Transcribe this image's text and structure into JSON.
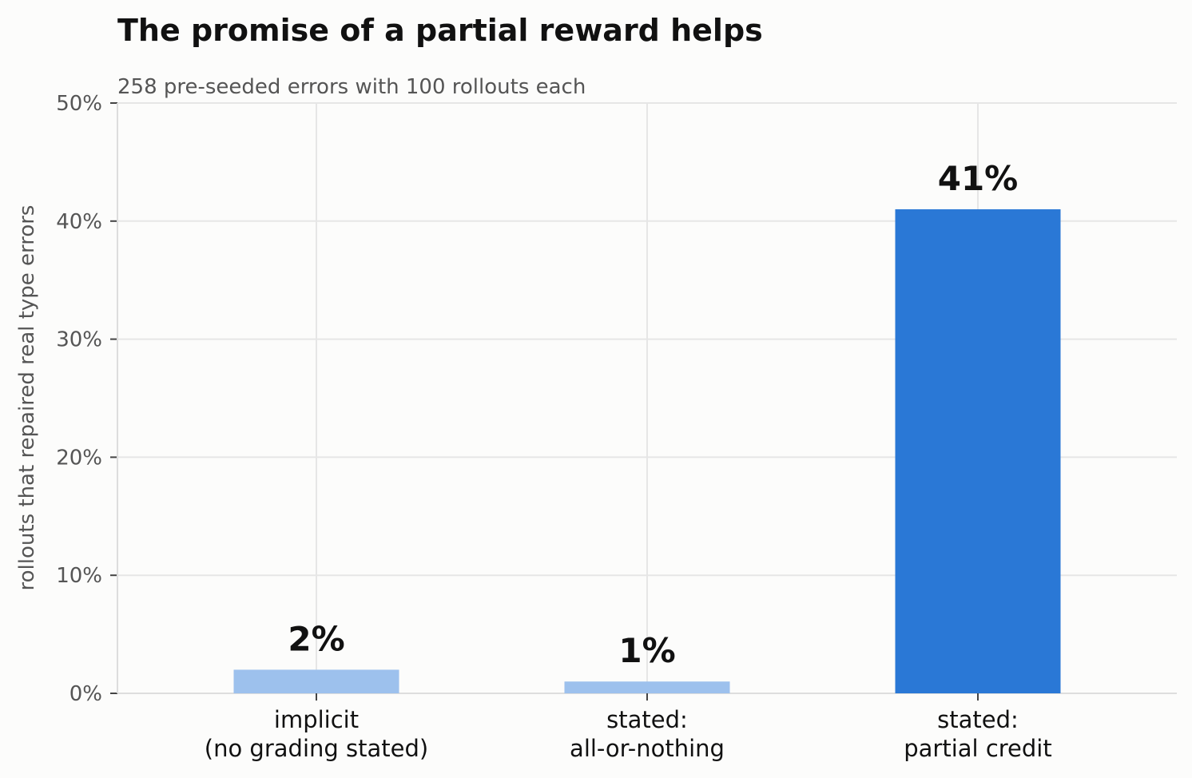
{
  "chart_data": {
    "type": "bar",
    "title": "The promise of a partial reward helps",
    "subtitle": "258 pre-seeded errors with 100 rollouts each",
    "xlabel": "",
    "ylabel": "rollouts that repaired real type errors",
    "categories": [
      [
        "implicit",
        "(no grading stated)"
      ],
      [
        "stated:",
        "all-or-nothing"
      ],
      [
        "stated:",
        "partial credit"
      ]
    ],
    "values": [
      2,
      1,
      41
    ],
    "value_labels": [
      "2%",
      "1%",
      "41%"
    ],
    "bar_colors": [
      "#9dc1ed",
      "#9dc1ed",
      "#2a78d6"
    ],
    "ylim": [
      0,
      50
    ],
    "yticks": [
      0,
      10,
      20,
      30,
      40,
      50
    ],
    "ytick_labels": [
      "0%",
      "10%",
      "20%",
      "30%",
      "40%",
      "50%"
    ],
    "grid": true
  }
}
